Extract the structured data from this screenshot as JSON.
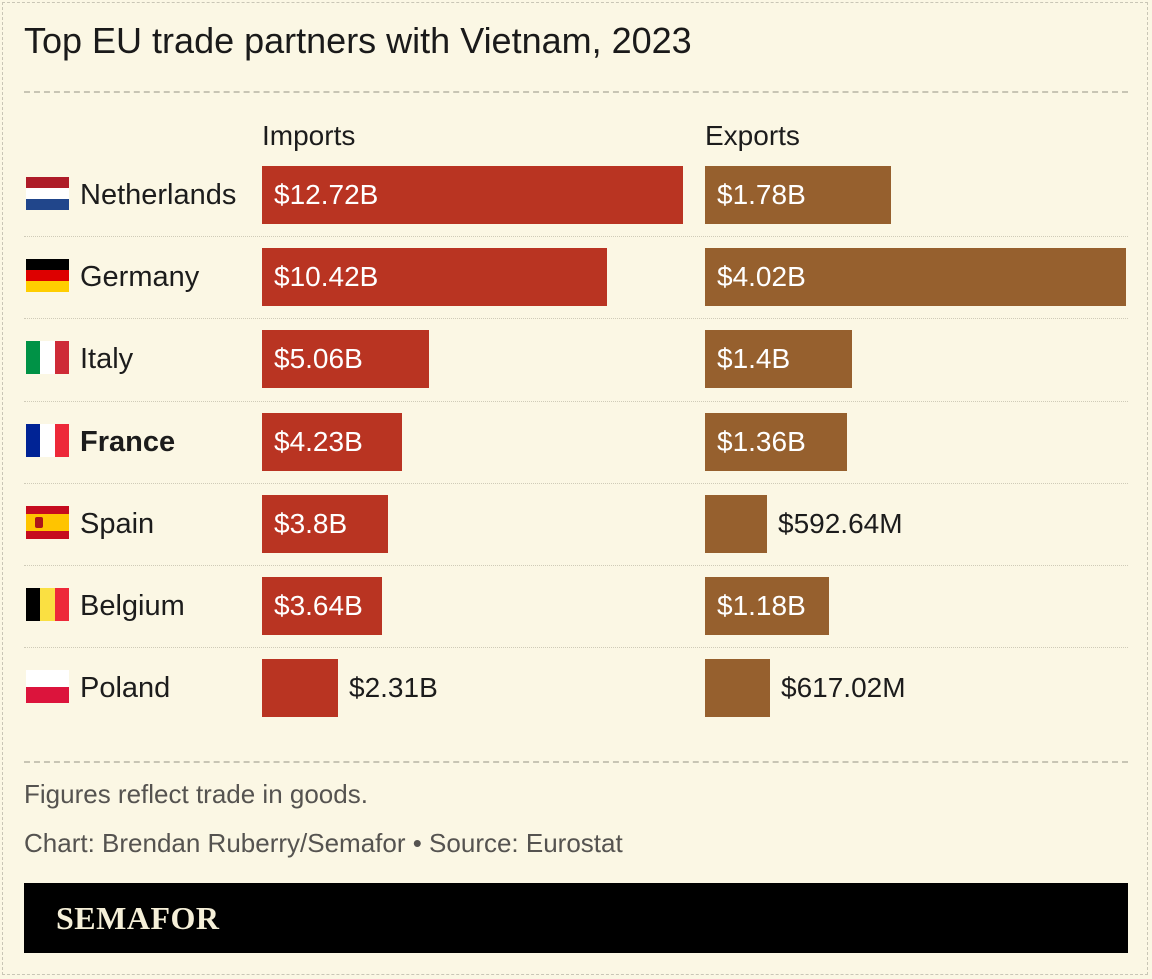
{
  "title": "Top EU trade partners with Vietnam, 2023",
  "columns": {
    "imports": "Imports",
    "exports": "Exports"
  },
  "colors": {
    "imports": "#b93422",
    "exports": "#96602e",
    "background": "#fbf7e4"
  },
  "rows": [
    {
      "country": "Netherlands",
      "flag": "netherlands-flag-icon",
      "bold": false,
      "imports_label": "$12.72B",
      "exports_label": "$1.78B"
    },
    {
      "country": "Germany",
      "flag": "germany-flag-icon",
      "bold": false,
      "imports_label": "$10.42B",
      "exports_label": "$4.02B"
    },
    {
      "country": "Italy",
      "flag": "italy-flag-icon",
      "bold": false,
      "imports_label": "$5.06B",
      "exports_label": "$1.4B"
    },
    {
      "country": "France",
      "flag": "france-flag-icon",
      "bold": true,
      "imports_label": "$4.23B",
      "exports_label": "$1.36B"
    },
    {
      "country": "Spain",
      "flag": "spain-flag-icon",
      "bold": false,
      "imports_label": "$3.8B",
      "exports_label": "$592.64M"
    },
    {
      "country": "Belgium",
      "flag": "belgium-flag-icon",
      "bold": false,
      "imports_label": "$3.64B",
      "exports_label": "$1.18B"
    },
    {
      "country": "Poland",
      "flag": "poland-flag-icon",
      "bold": false,
      "imports_label": "$2.31B",
      "exports_label": "$617.02M"
    }
  ],
  "chart_data": {
    "type": "bar",
    "orientation": "horizontal",
    "title": "Top EU trade partners with Vietnam, 2023",
    "categories": [
      "Netherlands",
      "Germany",
      "Italy",
      "France",
      "Spain",
      "Belgium",
      "Poland"
    ],
    "series": [
      {
        "name": "Imports",
        "unit": "USD billions",
        "values": [
          12.72,
          10.42,
          5.06,
          4.23,
          3.8,
          3.64,
          2.31
        ]
      },
      {
        "name": "Exports",
        "unit": "USD billions",
        "values": [
          1.78,
          4.02,
          1.4,
          1.36,
          0.59264,
          1.18,
          0.61702
        ]
      }
    ]
  },
  "footer": {
    "note": "Figures reflect trade in goods.",
    "credit": "Chart: Brendan Ruberry/Semafor • Source: Eurostat",
    "brand": "SEMAFOR"
  }
}
